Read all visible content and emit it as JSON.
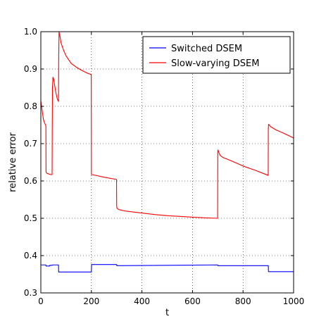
{
  "chart_data": {
    "type": "line",
    "xlabel": "t",
    "ylabel": "relative error",
    "xlim": [
      0,
      1000
    ],
    "ylim": [
      0.3,
      1.0
    ],
    "x_ticks": [
      0,
      200,
      400,
      600,
      800,
      1000
    ],
    "y_ticks": [
      0.3,
      0.4,
      0.5,
      0.6,
      0.7,
      0.8,
      0.9,
      1.0
    ],
    "grid": true,
    "legend_position": "top-right",
    "series": [
      {
        "name": "Switched DSEM",
        "color": "#0000ff",
        "x": [
          0,
          20,
          20.5,
          35,
          35.5,
          45,
          45.5,
          70,
          70.5,
          200,
          200.5,
          300,
          300.5,
          500,
          700,
          700.5,
          900,
          900.5,
          1000
        ],
        "y": [
          0.375,
          0.375,
          0.372,
          0.372,
          0.374,
          0.374,
          0.375,
          0.375,
          0.356,
          0.356,
          0.376,
          0.376,
          0.373,
          0.374,
          0.375,
          0.373,
          0.373,
          0.357,
          0.357
        ]
      },
      {
        "name": "Slow-varying DSEM",
        "color": "#ff0000",
        "x": [
          0,
          5,
          10,
          15,
          19,
          20,
          20.5,
          22,
          25,
          30,
          35,
          40,
          44.5,
          45,
          46,
          48,
          50,
          55,
          60,
          65,
          70,
          70.5,
          72,
          75,
          80,
          90,
          100,
          120,
          140,
          160,
          180,
          199.5,
          200,
          201,
          210,
          250,
          299.5,
          300,
          301,
          305,
          310,
          330,
          350,
          400,
          450,
          500,
          550,
          600,
          650,
          699.5,
          700,
          701,
          705,
          710,
          720,
          750,
          800,
          850,
          899.5,
          900,
          901,
          910,
          930,
          960,
          1000
        ],
        "y": [
          0.815,
          0.79,
          0.765,
          0.755,
          0.75,
          0.745,
          0.625,
          0.622,
          0.62,
          0.619,
          0.618,
          0.617,
          0.617,
          0.72,
          0.85,
          0.878,
          0.875,
          0.855,
          0.835,
          0.82,
          0.813,
          0.915,
          1.0,
          0.99,
          0.97,
          0.95,
          0.935,
          0.915,
          0.905,
          0.897,
          0.89,
          0.885,
          0.618,
          0.617,
          0.616,
          0.61,
          0.604,
          0.535,
          0.527,
          0.525,
          0.523,
          0.52,
          0.518,
          0.514,
          0.51,
          0.507,
          0.505,
          0.503,
          0.501,
          0.5,
          0.68,
          0.683,
          0.675,
          0.668,
          0.663,
          0.655,
          0.64,
          0.628,
          0.615,
          0.74,
          0.752,
          0.745,
          0.737,
          0.728,
          0.715
        ]
      }
    ]
  }
}
